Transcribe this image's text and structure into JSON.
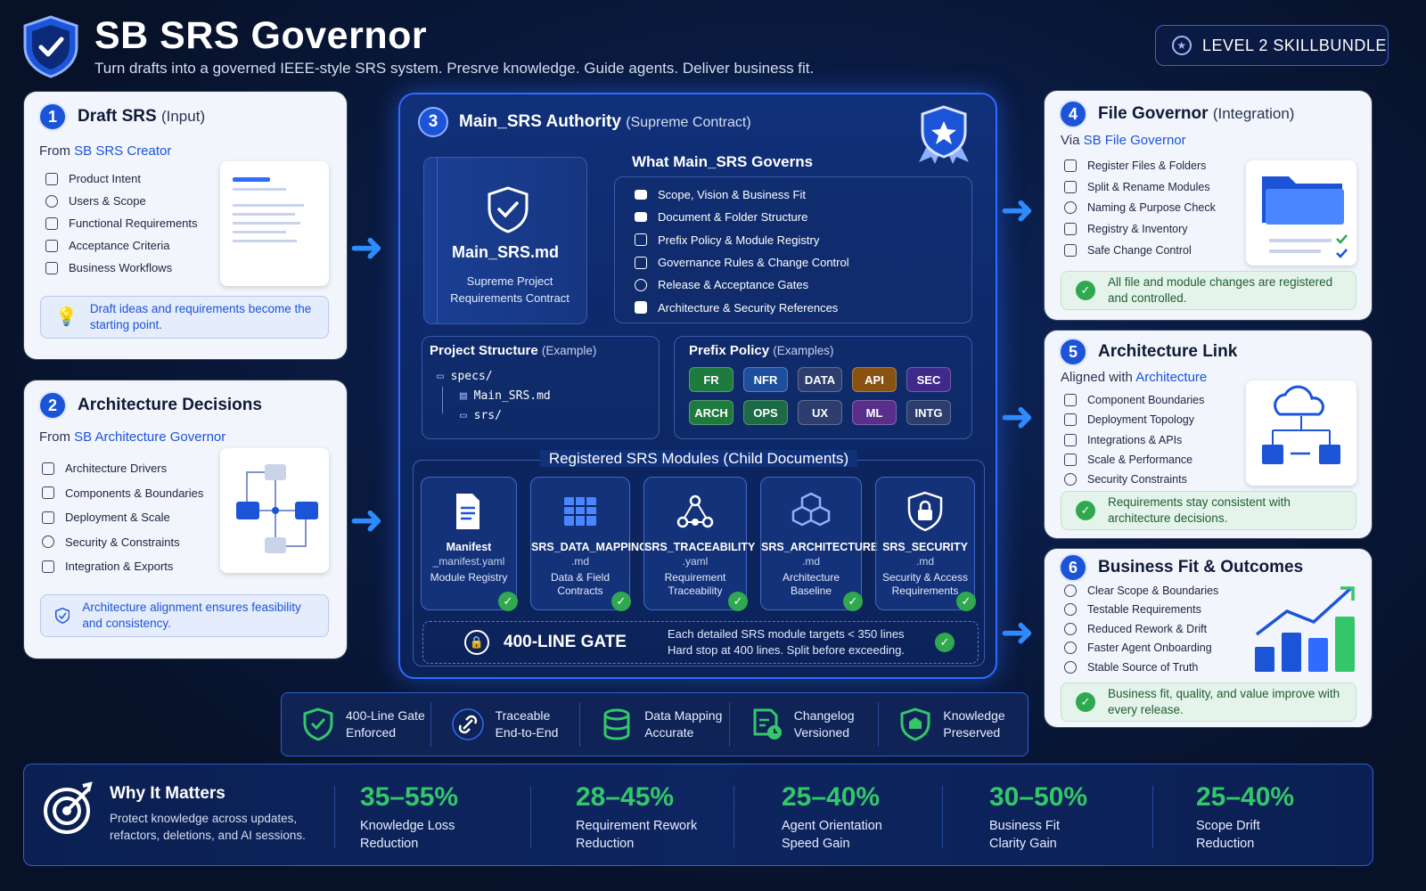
{
  "header": {
    "title": "SB SRS Governor",
    "subtitle": "Turn drafts into a governed IEEE-style SRS system. Presrve knowledge. Guide agents. Deliver business fit.",
    "level_badge": "LEVEL 2 SKILLBUNDLE"
  },
  "card1": {
    "num": "1",
    "title": "Draft SRS",
    "tag": "(Input)",
    "from_prefix": "From",
    "from_link": "SB SRS Creator",
    "items": [
      "Product Intent",
      "Users & Scope",
      "Functional Requirements",
      "Acceptance Criteria",
      "Business Workflows"
    ],
    "note": "Draft ideas and requirements become the starting point."
  },
  "card2": {
    "num": "2",
    "title": "Architecture Decisions",
    "from_prefix": "From",
    "from_link": "SB Architecture Governor",
    "items": [
      "Architecture Drivers",
      "Components & Boundaries",
      "Deployment & Scale",
      "Security & Constraints",
      "Integration & Exports"
    ],
    "note": "Architecture alignment ensures feasibility and consistency."
  },
  "central": {
    "num": "3",
    "title": "Main_SRS Authority",
    "tag": "(Supreme Contract)",
    "doc_name": "Main_SRS.md",
    "doc_desc": "Supreme Project Requirements Contract",
    "governs_title": "What Main_SRS Governs",
    "governs": [
      "Scope, Vision & Business Fit",
      "Document & Folder Structure",
      "Prefix Policy & Module Registry",
      "Governance Rules & Change Control",
      "Release & Acceptance Gates",
      "Architecture & Security References"
    ],
    "structure_title": "Project Structure",
    "structure_tag": "(Example)",
    "structure": [
      "specs/",
      "Main_SRS.md",
      "srs/"
    ],
    "prefix_title": "Prefix Policy",
    "prefix_tag": "(Examples)",
    "prefixes": [
      {
        "label": "FR",
        "color": "#1f7a3e"
      },
      {
        "label": "NFR",
        "color": "#1e4f9e"
      },
      {
        "label": "DATA",
        "color": "#2d3d6e"
      },
      {
        "label": "API",
        "color": "#8a5212"
      },
      {
        "label": "SEC",
        "color": "#3f2a8c"
      },
      {
        "label": "ARCH",
        "color": "#1f7a3e"
      },
      {
        "label": "OPS",
        "color": "#1c6b45"
      },
      {
        "label": "UX",
        "color": "#2d3d6e"
      },
      {
        "label": "ML",
        "color": "#5a2f8c"
      },
      {
        "label": "INTG",
        "color": "#2d3d6e"
      }
    ],
    "modules_title": "Registered SRS Modules (Child Documents)",
    "modules": [
      {
        "name": "Manifest",
        "file": "_manifest.yaml",
        "desc": "Module Registry",
        "icon": "document-icon"
      },
      {
        "name": "SRS_DATA_MAPPING",
        "file": ".md",
        "desc": "Data & Field Contracts",
        "icon": "table-icon"
      },
      {
        "name": "SRS_TRACEABILITY",
        "file": ".yaml",
        "desc": "Requirement Traceability",
        "icon": "network-icon"
      },
      {
        "name": "SRS_ARCHITECTURE",
        "file": ".md",
        "desc": "Architecture Baseline",
        "icon": "cubes-icon"
      },
      {
        "name": "SRS_SECURITY",
        "file": ".md",
        "desc": "Security & Access Requirements",
        "icon": "lock-shield-icon"
      }
    ],
    "gate_title": "400-LINE GATE",
    "gate_line1": "Each detailed SRS module targets < 350 lines",
    "gate_line2": "Hard stop at 400 lines. Split before exceeding."
  },
  "card4": {
    "num": "4",
    "title": "File Governor",
    "tag": "(Integration)",
    "from_prefix": "Via",
    "from_link": "SB File Governor",
    "items": [
      "Register Files & Folders",
      "Split & Rename Modules",
      "Naming & Purpose Check",
      "Registry & Inventory",
      "Safe Change Control"
    ],
    "note": "All file and module changes are registered and controlled."
  },
  "card5": {
    "num": "5",
    "title": "Architecture Link",
    "from_prefix": "Aligned with",
    "from_link": "Architecture",
    "items": [
      "Component Boundaries",
      "Deployment Topology",
      "Integrations & APIs",
      "Scale & Performance",
      "Security Constraints"
    ],
    "note": "Requirements stay consistent with architecture decisions."
  },
  "card6": {
    "num": "6",
    "title": "Business Fit & Outcomes",
    "items": [
      "Clear Scope & Boundaries",
      "Testable Requirements",
      "Reduced Rework & Drift",
      "Faster Agent Onboarding",
      "Stable Source of Truth"
    ],
    "note": "Business fit, quality, and value improve with every release."
  },
  "features": [
    {
      "line1": "400-Line Gate",
      "line2": "Enforced"
    },
    {
      "line1": "Traceable",
      "line2": "End-to-End"
    },
    {
      "line1": "Data Mapping",
      "line2": "Accurate"
    },
    {
      "line1": "Changelog",
      "line2": "Versioned"
    },
    {
      "line1": "Knowledge",
      "line2": "Preserved"
    }
  ],
  "why": {
    "title": "Why It Matters",
    "desc": "Protect knowledge across updates, refactors, deletions, and AI sessions.",
    "stats": [
      {
        "value": "35–55%",
        "line1": "Knowledge Loss",
        "line2": "Reduction"
      },
      {
        "value": "28–45%",
        "line1": "Requirement Rework",
        "line2": "Reduction"
      },
      {
        "value": "25–40%",
        "line1": "Agent Orientation",
        "line2": "Speed Gain"
      },
      {
        "value": "30–50%",
        "line1": "Business Fit",
        "line2": "Clarity Gain"
      },
      {
        "value": "25–40%",
        "line1": "Scope Drift",
        "line2": "Reduction"
      }
    ]
  },
  "colors": {
    "accent": "#1c54d8",
    "success": "#33c76a",
    "glow": "#2f6bff"
  }
}
